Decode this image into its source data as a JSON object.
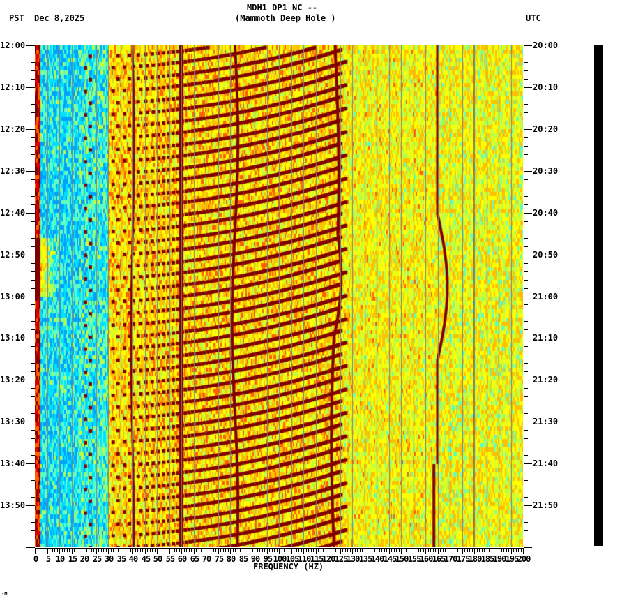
{
  "header": {
    "station_line": "MDH1 DP1 NC --",
    "station_name": "(Mammoth Deep Hole )",
    "left_tz": "PST",
    "date": "Dec 8,2025",
    "right_tz": "UTC"
  },
  "footer": {
    "mark": "·M"
  },
  "chart_data": {
    "type": "heatmap",
    "title": "MDH1 DP1 NC -- (Mammoth Deep Hole )",
    "subtitle": "Dec 8,2025",
    "xlabel": "FREQUENCY (HZ)",
    "ylabel_left": "PST",
    "ylabel_right": "UTC",
    "xlim": [
      0,
      200
    ],
    "x_ticks": [
      "0",
      "5",
      "10",
      "15",
      "20",
      "25",
      "30",
      "35",
      "40",
      "45",
      "50",
      "55",
      "60",
      "65",
      "70",
      "75",
      "80",
      "85",
      "90",
      "95",
      "100",
      "105",
      "110",
      "115",
      "120",
      "125",
      "130",
      "135",
      "140",
      "145",
      "150",
      "155",
      "160",
      "165",
      "170",
      "175",
      "180",
      "185",
      "190",
      "195",
      "200"
    ],
    "y_ticks_left": [
      "12:00",
      "12:10",
      "12:20",
      "12:30",
      "12:40",
      "12:50",
      "13:00",
      "13:10",
      "13:20",
      "13:30",
      "13:40",
      "13:50"
    ],
    "y_ticks_right": [
      "20:00",
      "20:10",
      "20:20",
      "20:30",
      "20:40",
      "20:50",
      "21:00",
      "21:10",
      "21:20",
      "21:30",
      "21:40",
      "21:50"
    ],
    "time_range_minutes": 120,
    "colormap": [
      "#00a0ff",
      "#00e0ff",
      "#60ffc0",
      "#c0ff40",
      "#ffff00",
      "#ffc000",
      "#ff6000",
      "#e00000",
      "#800000"
    ],
    "grid": "vertical gray lines every 5 Hz",
    "features": [
      {
        "type": "constant_line",
        "freq_hz": 60,
        "desc": "strong power-line tone"
      },
      {
        "type": "wandering_line",
        "freq_hz_approx": 40
      },
      {
        "type": "wandering_line",
        "freq_hz_approx": 82
      },
      {
        "type": "wandering_line",
        "freq_hz_approx": 123
      },
      {
        "type": "wandering_line",
        "freq_hz_approx": 165,
        "desc": "shifts to ~170 Hz around 13:00 PST"
      },
      {
        "type": "rising_chirps",
        "freq_range_hz": [
          20,
          125
        ],
        "period_min": 2.8,
        "desc": "repeating upward-sweeping tones"
      },
      {
        "type": "low_band_noise",
        "freq_range_hz": [
          0,
          2
        ],
        "desc": "strong energy near 0 Hz, peak 12:48-13:00"
      }
    ],
    "background_levels": {
      "0-30 Hz": "low (blue/cyan)",
      "30-125 Hz": "high (yellow/orange)",
      "125-200 Hz": "medium (yellow/green)"
    }
  }
}
